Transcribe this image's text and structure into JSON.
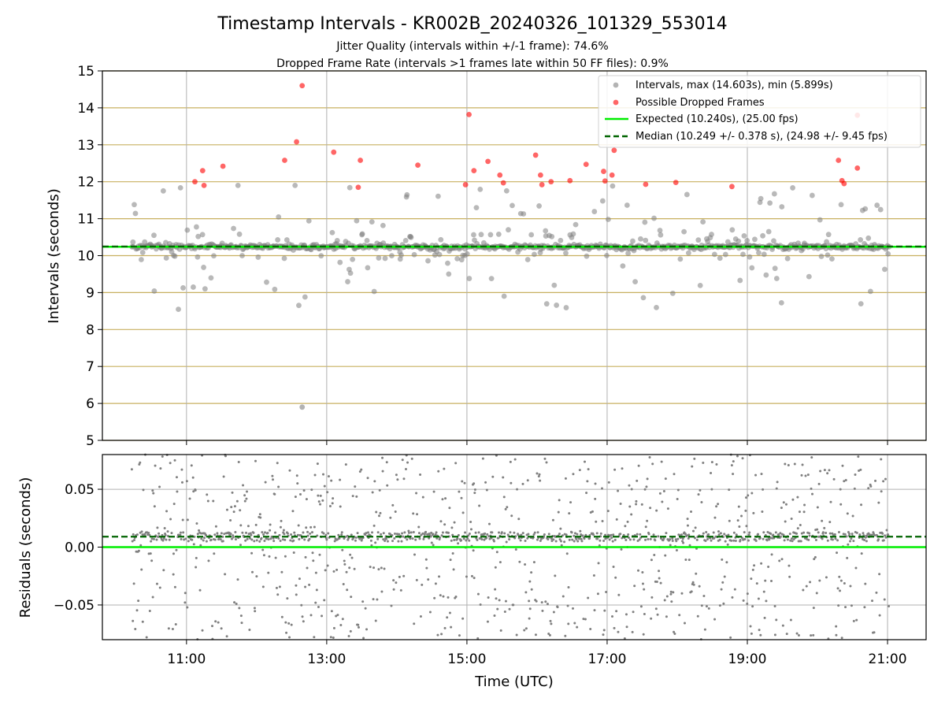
{
  "title": "Timestamp Intervals - KR002B_20240326_101329_553014",
  "subtitle_lines": [
    "Jitter Quality (intervals within +/-1 frame): 74.6%",
    "Dropped Frame Rate (intervals >1 frames late within 50 FF files): 0.9%"
  ],
  "colors": {
    "intervals": "#808080",
    "dropped": "#ff0000",
    "expected": "#00ee00",
    "median": "#006400",
    "gold_grid": "#c8b060",
    "grid": "#b0b0b0"
  },
  "chart_data": [
    {
      "type": "scatter",
      "panel": "intervals",
      "ylabel": "Intervals (seconds)",
      "ylim": [
        5,
        15
      ],
      "yticks": [
        "5",
        "6",
        "7",
        "8",
        "9",
        "10",
        "11",
        "12",
        "13",
        "14",
        "15"
      ],
      "xlim_hours": [
        9.8,
        21.55
      ],
      "grid": true,
      "legend_position": "top-right",
      "legend": [
        "Intervals, max (14.603s), min (5.899s)",
        "Possible Dropped Frames",
        "Expected (10.240s), (25.00 fps)",
        "Median (10.249 +/- 0.378 s), (24.98 +/- 9.45 fps)"
      ],
      "expected_line": 10.24,
      "median_line": 10.249,
      "dropped_frames": [
        {
          "x": 11.12,
          "y": 12.0
        },
        {
          "x": 11.23,
          "y": 12.3
        },
        {
          "x": 11.25,
          "y": 11.9
        },
        {
          "x": 11.52,
          "y": 12.42
        },
        {
          "x": 12.4,
          "y": 12.58
        },
        {
          "x": 12.57,
          "y": 13.08
        },
        {
          "x": 12.65,
          "y": 14.6
        },
        {
          "x": 13.1,
          "y": 12.8
        },
        {
          "x": 13.45,
          "y": 11.85
        },
        {
          "x": 13.48,
          "y": 12.58
        },
        {
          "x": 14.3,
          "y": 12.45
        },
        {
          "x": 14.98,
          "y": 11.92
        },
        {
          "x": 15.03,
          "y": 13.82
        },
        {
          "x": 15.1,
          "y": 12.3
        },
        {
          "x": 15.3,
          "y": 12.55
        },
        {
          "x": 15.47,
          "y": 12.18
        },
        {
          "x": 15.52,
          "y": 11.97
        },
        {
          "x": 15.98,
          "y": 12.72
        },
        {
          "x": 16.05,
          "y": 12.18
        },
        {
          "x": 16.07,
          "y": 11.92
        },
        {
          "x": 16.2,
          "y": 12.0
        },
        {
          "x": 16.47,
          "y": 12.03
        },
        {
          "x": 16.7,
          "y": 12.47
        },
        {
          "x": 16.95,
          "y": 12.28
        },
        {
          "x": 16.97,
          "y": 12.02
        },
        {
          "x": 17.07,
          "y": 12.18
        },
        {
          "x": 17.1,
          "y": 12.85
        },
        {
          "x": 17.55,
          "y": 11.93
        },
        {
          "x": 17.98,
          "y": 11.98
        },
        {
          "x": 18.78,
          "y": 11.87
        },
        {
          "x": 20.3,
          "y": 12.58
        },
        {
          "x": 20.35,
          "y": 12.03
        },
        {
          "x": 20.38,
          "y": 11.95
        },
        {
          "x": 20.57,
          "y": 13.8
        },
        {
          "x": 20.57,
          "y": 12.37
        }
      ]
    },
    {
      "type": "scatter",
      "panel": "residuals",
      "ylabel": "Residuals (seconds)",
      "xlabel": "Time (UTC)",
      "ylim": [
        -0.08,
        0.08
      ],
      "yticks": [
        "−0.05",
        "0.00",
        "0.05"
      ],
      "ytick_values": [
        -0.05,
        0,
        0.05
      ],
      "xticks": [
        "11:00",
        "13:00",
        "15:00",
        "17:00",
        "19:00",
        "21:00"
      ],
      "xtick_hours": [
        11,
        13,
        15,
        17,
        19,
        21
      ],
      "zero_line": 0.0,
      "median_line": 0.009,
      "grid": true
    }
  ]
}
